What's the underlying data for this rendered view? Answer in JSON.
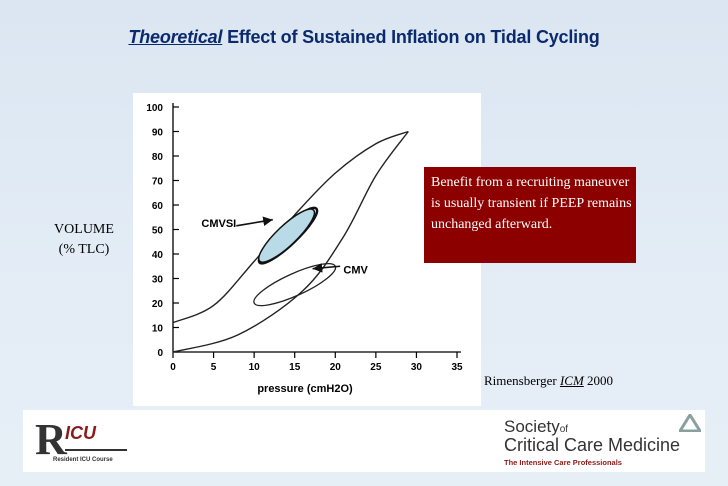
{
  "title": {
    "italic": "Theoretical",
    "rest": " Effect of Sustained Inflation on Tidal Cycling"
  },
  "ylabel": {
    "line1": "VOLUME",
    "line2": "(% TLC)"
  },
  "note": "Benefit from a recruiting maneuver is usually transient if PEEP remains unchanged afterward.",
  "citation": {
    "author": "Rimensberger ",
    "journal": "ICM",
    "year": " 2000"
  },
  "logos": {
    "left": {
      "mark": "R",
      "text": "ICU",
      "sub": "Resident ICU Course"
    },
    "right": {
      "line1": "Society",
      "line1_small": "of",
      "line2": "Critical Care Medicine",
      "line3": "The Intensive Care Professionals"
    }
  },
  "chart_data": {
    "type": "line",
    "xlabel": "pressure (cmH2O)",
    "ylabel": "",
    "xlim": [
      0,
      35
    ],
    "ylim": [
      0,
      100
    ],
    "xticks": [
      0,
      5,
      10,
      15,
      20,
      25,
      30,
      35
    ],
    "yticks": [
      0,
      10,
      20,
      30,
      40,
      50,
      60,
      70,
      80,
      90,
      100
    ],
    "grid": false,
    "series": [
      {
        "role": "outer-loop-inflation",
        "points": [
          [
            0,
            12
          ],
          [
            5,
            19
          ],
          [
            10,
            37
          ],
          [
            15,
            56
          ],
          [
            20,
            73
          ],
          [
            25,
            85
          ],
          [
            29,
            90
          ]
        ]
      },
      {
        "role": "outer-loop-deflation",
        "points": [
          [
            29,
            90
          ],
          [
            25,
            72
          ],
          [
            21,
            47
          ],
          [
            16,
            25
          ],
          [
            8,
            7
          ],
          [
            0,
            0
          ]
        ]
      }
    ],
    "loops": [
      {
        "name": "CMVSI",
        "center": [
          14,
          47.5
        ],
        "pressure_range": [
          10.5,
          17.5
        ],
        "volume_range": [
          37,
          59
        ],
        "shaded": true
      },
      {
        "name": "CMV",
        "center": [
          15,
          27.5
        ],
        "pressure_range": [
          10,
          20
        ],
        "volume_range": [
          20,
          35
        ],
        "shaded": false
      }
    ],
    "annotations": [
      {
        "text": "CMVSI",
        "at": [
          3.5,
          51
        ]
      },
      {
        "text": "CMV",
        "at": [
          21,
          32
        ]
      }
    ]
  }
}
